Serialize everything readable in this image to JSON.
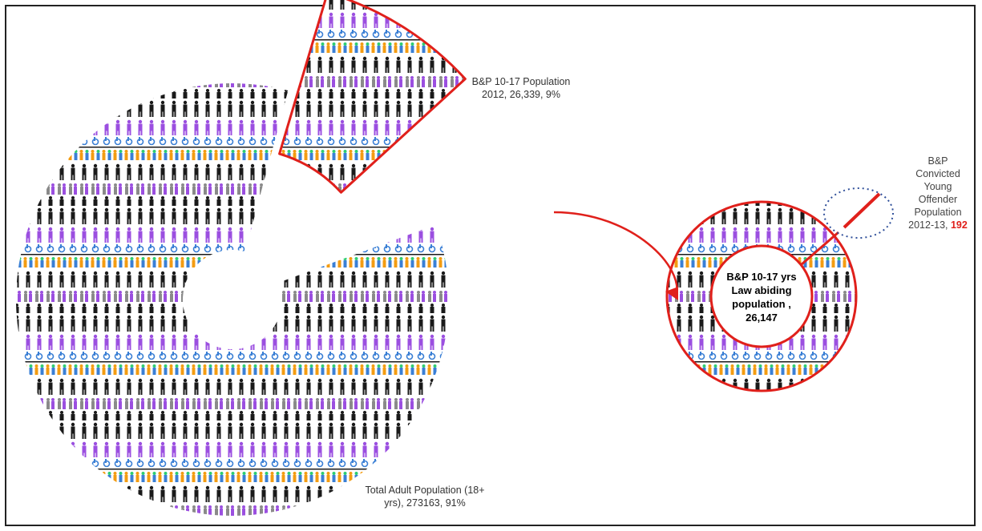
{
  "chart_data": {
    "type": "pie",
    "slices": [
      {
        "label_line1": "Total Adult Population (18+",
        "label_line2": "yrs), 273163, 91%",
        "category": "Total Adult Population (18+ yrs)",
        "year": null,
        "value": 273163,
        "percent": 91
      },
      {
        "label_line1": "B&P 10-17 Population",
        "label_line2": "2012, 26,339, 9%",
        "category": "B&P 10-17 Population",
        "year": 2012,
        "value": 26339,
        "percent": 9
      }
    ],
    "breakdown": {
      "type": "pie",
      "parts": [
        {
          "label_lines": [
            "B&P 10-17 yrs",
            "Law abiding",
            "population ,",
            "26,147"
          ],
          "value": 26147
        },
        {
          "label_lines": [
            "B&P",
            "Convicted",
            "Young",
            "Offender",
            "Population"
          ],
          "year_label": "2012-13, ",
          "value_text": "192",
          "value": 192
        }
      ]
    },
    "colors": {
      "highlight": "#e0201b",
      "figure_dark": "#1a1a1a",
      "figure_purple": "#9b4fe0",
      "figure_grey": "#8a8a8a",
      "wheelchair_blue": "#3a7fd5",
      "dotted_circle": "#2f4f9a"
    }
  }
}
